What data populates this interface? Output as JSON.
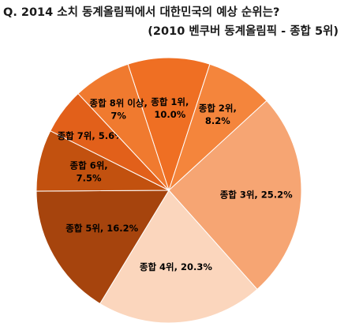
{
  "title": "Q. 2014 소치 동계올림픽에서 대한민국의 예상 순위는?",
  "subtitle": "(2010 벤쿠버 동계올림픽 - 종합 5위)",
  "chart_data": {
    "type": "pie",
    "title": "Q. 2014 소치 동계올림픽에서 대한민국의 예상 순위는?",
    "subtitle": "(2010 벤쿠버 동계올림픽 - 종합 5위)",
    "slices": [
      {
        "label": "종합 1위,",
        "value_label": "10.0%",
        "value": 10.0,
        "color": "#ef6f23"
      },
      {
        "label": "종합 2위,",
        "value_label": "8.2%",
        "value": 8.2,
        "color": "#f4853c"
      },
      {
        "label": "종합 3위, 25.2%",
        "value_label": "",
        "value": 25.2,
        "color": "#f6a573"
      },
      {
        "label": "종합 4위, 20.3%",
        "value_label": "",
        "value": 20.3,
        "color": "#fbd6bd"
      },
      {
        "label": "종합 5위, 16.2%",
        "value_label": "",
        "value": 16.2,
        "color": "#a6440d"
      },
      {
        "label": "종합 6위,",
        "value_label": "7.5%",
        "value": 7.5,
        "color": "#c2510f"
      },
      {
        "label": "종합 7위, 5.6%",
        "value_label": "",
        "value": 5.6,
        "color": "#e2601a"
      },
      {
        "label": "종합 8위 이상,",
        "value_label": "7%",
        "value": 7.0,
        "color": "#f07a2f"
      }
    ]
  }
}
